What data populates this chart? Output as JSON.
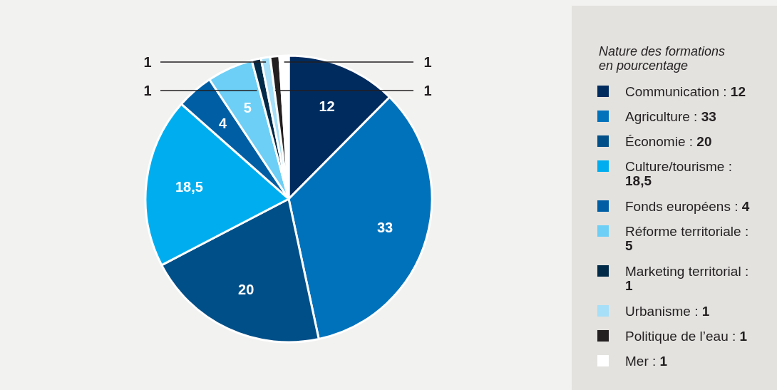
{
  "chart_data": {
    "type": "pie",
    "legend_title": "Nature des formations en pourcentage",
    "categories": [
      "Communication",
      "Agriculture",
      "Économie",
      "Culture/tourisme",
      "Fonds européens",
      "Réforme territoriale",
      "Marketing territorial",
      "Urbanisme",
      "Politique de l’eau",
      "Mer"
    ],
    "values": [
      12,
      33,
      20,
      18.5,
      4,
      5,
      1,
      1,
      1,
      1
    ],
    "value_labels": [
      "12",
      "33",
      "20",
      "18,5",
      "4",
      "5",
      "1",
      "1",
      "1",
      "1"
    ],
    "colors": [
      "#002b5f",
      "#0072bc",
      "#004f88",
      "#00aeef",
      "#005ea4",
      "#6dcff6",
      "#002a48",
      "#a6dff7",
      "#231f20",
      "#ffffff"
    ],
    "legend": "right"
  }
}
